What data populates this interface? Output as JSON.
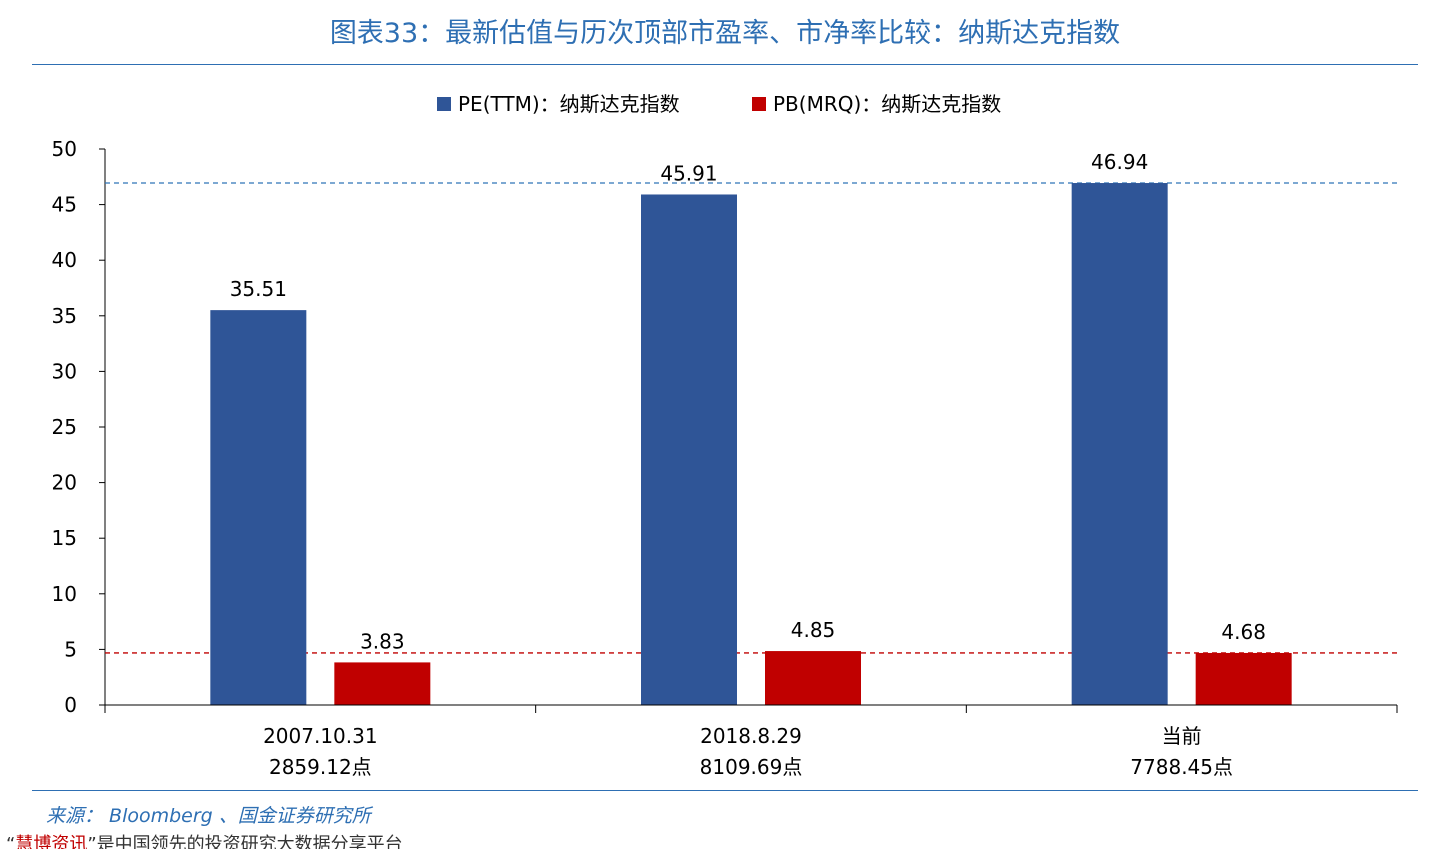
{
  "title": "图表33：最新估值与历次顶部市盈率、市净率比较：纳斯达克指数",
  "source": "来源： Bloomberg 、国金证券研究所",
  "footer": {
    "quote_open": "“",
    "highlight": "慧博资讯",
    "quote_close": "”",
    "rest": "是中国领先的投资研究大数据分享平台"
  },
  "chart_data": {
    "type": "bar",
    "categories": [
      [
        "2007.10.31",
        "2859.12点"
      ],
      [
        "2018.8.29",
        "8109.69点"
      ],
      [
        "当前",
        "7788.45点"
      ]
    ],
    "series": [
      {
        "name": "PE(TTM)：纳斯达克指数",
        "values": [
          35.51,
          45.91,
          46.94
        ],
        "color": "#2f5597"
      },
      {
        "name": "PB(MRQ)：纳斯达克指数",
        "values": [
          3.83,
          4.85,
          4.68
        ],
        "color": "#c00000"
      }
    ],
    "data_labels": [
      [
        "35.51",
        "45.91",
        "46.94"
      ],
      [
        "3.83",
        "4.85",
        "4.68"
      ]
    ],
    "ylim": [
      0,
      50
    ],
    "yticks": [
      0,
      5,
      10,
      15,
      20,
      25,
      30,
      35,
      40,
      45,
      50
    ],
    "reference_lines": [
      {
        "value": 46.94,
        "color": "#2e75b6",
        "style": "dashed"
      },
      {
        "value": 4.68,
        "color": "#c00000",
        "style": "dashed"
      }
    ],
    "legend_position": "top-center",
    "grid": false
  }
}
